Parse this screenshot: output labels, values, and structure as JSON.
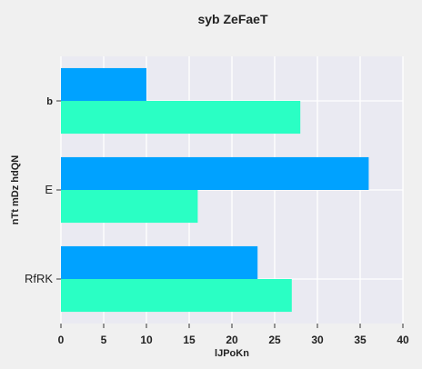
{
  "chart_data": {
    "type": "bar",
    "orientation": "horizontal",
    "title": "syb ZeFaeT",
    "xlabel": "lJPoKn",
    "ylabel": "nTt  mDz hdQN",
    "categories": [
      "b",
      "E",
      "RfRK"
    ],
    "series": [
      {
        "values": [
          10,
          36,
          23
        ],
        "color": "#00a2ff"
      },
      {
        "values": [
          28,
          16,
          27
        ],
        "color": "#2affc4"
      }
    ],
    "xlim": [
      0,
      40
    ],
    "xticks": [
      "0",
      "5",
      "10",
      "15",
      "20",
      "25",
      "30",
      "35",
      "40"
    ],
    "grid": true,
    "legend": "none",
    "colors": {
      "plot_background": "#eaeaf2",
      "page_background": "#f0f0f0",
      "grid": "#ffffff"
    }
  }
}
